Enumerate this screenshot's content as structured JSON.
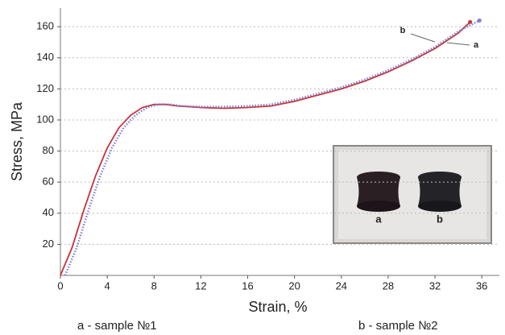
{
  "chart_data": {
    "type": "line",
    "xlabel": "Strain, %",
    "ylabel": "Stress, MPa",
    "xlim": [
      0,
      37.5
    ],
    "ylim": [
      0,
      172
    ],
    "xticks": [
      0,
      4,
      8,
      12,
      16,
      20,
      24,
      28,
      32,
      36
    ],
    "yticks": [
      20,
      40,
      60,
      80,
      100,
      120,
      140,
      160
    ],
    "grid": true,
    "series": [
      {
        "name": "a",
        "color": "#c8323c",
        "style": "solid",
        "x": [
          0,
          1,
          2,
          3,
          4,
          5,
          6,
          7,
          8,
          9,
          10,
          12,
          14,
          16,
          18,
          20,
          22,
          24,
          26,
          28,
          30,
          32,
          34,
          35
        ],
        "values": [
          0,
          18,
          42,
          64,
          82,
          95,
          103,
          108,
          110,
          110,
          109,
          108,
          107.5,
          108,
          109,
          112,
          116,
          120,
          125,
          131,
          138,
          146,
          156,
          163
        ]
      },
      {
        "name": "b",
        "color": "#7b7fd4",
        "style": "dotted",
        "x": [
          0.4,
          1.4,
          2.4,
          3.4,
          4.4,
          5.4,
          6.4,
          7.4,
          8.4,
          9.4,
          10.4,
          12,
          14,
          16,
          18,
          20,
          22,
          24,
          26,
          28,
          30,
          32,
          34,
          35.8
        ],
        "values": [
          0,
          18,
          42,
          64,
          82,
          95,
          103,
          108,
          110,
          110,
          109,
          108.5,
          108.5,
          109,
          110,
          113,
          117,
          121,
          126,
          132,
          139,
          147,
          157,
          164
        ]
      }
    ],
    "inset_labels": [
      "a",
      "b"
    ],
    "captions": [
      "a - sample №1",
      "b - sample №2"
    ]
  }
}
